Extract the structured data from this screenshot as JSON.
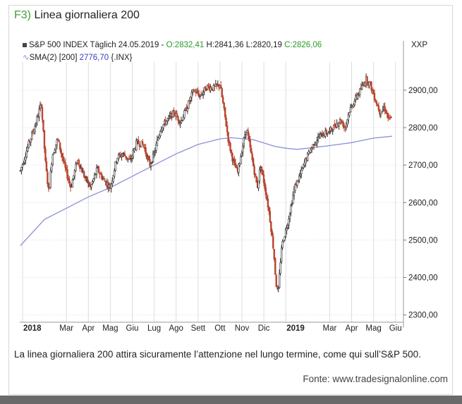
{
  "figure": {
    "label": "F3)",
    "title": "Linea giornaliera 200",
    "caption": "La linea giornaliera 200 attira sicuramente l’attenzione nel lungo termine, come qui sull’S&P 500.",
    "source": "Fonte: www.tradesignalonline.com"
  },
  "legend": {
    "price_line_prefix": "S&P 500 INDEX Täglich  24.05.2019 - ",
    "open": "O:2832,41",
    "high_low": "H:2841,36 L:2820,19",
    "close": "C:2826,06",
    "sma_prefix": "SMA(2) [200] ",
    "sma_value": "2776,70",
    "sma_suffix": " {.INX}"
  },
  "currency_label": "XXP",
  "colors": {
    "bull_candle": "#2b2b2b",
    "bear_candle": "#b8462f",
    "sma_line": "#8a90d8",
    "grid": "#dcdcdc",
    "title_label": "#3aa23a"
  },
  "chart_data": {
    "type": "candlestick",
    "instrument": "S&P 500 INDEX",
    "y_ticks": [
      "2900,00",
      "2800,00",
      "2700,00",
      "2600,00",
      "2500,00",
      "2400,00",
      "2300,00"
    ],
    "y_tick_values": [
      2900,
      2800,
      2700,
      2600,
      2500,
      2400,
      2300
    ],
    "ylim": [
      2290,
      2960
    ],
    "x_ticks": [
      "2018",
      "Mar",
      "Apr",
      "Mag",
      "Giu",
      "Lug",
      "Ago",
      "Sett",
      "Ott",
      "Nov",
      "Dic",
      "2019",
      "Mar",
      "Apr",
      "Mag",
      "Giu"
    ],
    "x_tick_months": [
      0,
      2,
      3,
      4,
      5,
      6,
      7,
      8,
      9,
      10,
      11,
      12,
      14,
      15,
      16,
      17
    ],
    "xlim_months": [
      0,
      17.6
    ],
    "series": [
      {
        "name": "S&P 500 INDEX",
        "key_points": [
          [
            -0.1,
            2685
          ],
          [
            0.3,
            2760
          ],
          [
            0.6,
            2810
          ],
          [
            0.85,
            2865
          ],
          [
            1.05,
            2700
          ],
          [
            1.2,
            2625
          ],
          [
            1.35,
            2725
          ],
          [
            1.6,
            2770
          ],
          [
            1.9,
            2700
          ],
          [
            2.2,
            2640
          ],
          [
            2.5,
            2715
          ],
          [
            2.85,
            2665
          ],
          [
            3.1,
            2640
          ],
          [
            3.4,
            2690
          ],
          [
            3.7,
            2660
          ],
          [
            4.0,
            2640
          ],
          [
            4.3,
            2720
          ],
          [
            4.6,
            2730
          ],
          [
            4.9,
            2710
          ],
          [
            5.2,
            2760
          ],
          [
            5.5,
            2755
          ],
          [
            5.8,
            2700
          ],
          [
            6.0,
            2730
          ],
          [
            6.3,
            2800
          ],
          [
            6.6,
            2820
          ],
          [
            6.9,
            2840
          ],
          [
            7.2,
            2815
          ],
          [
            7.5,
            2855
          ],
          [
            7.8,
            2900
          ],
          [
            8.1,
            2885
          ],
          [
            8.4,
            2910
          ],
          [
            8.7,
            2905
          ],
          [
            9.0,
            2915
          ],
          [
            9.2,
            2840
          ],
          [
            9.4,
            2760
          ],
          [
            9.6,
            2710
          ],
          [
            9.8,
            2680
          ],
          [
            10.0,
            2740
          ],
          [
            10.2,
            2800
          ],
          [
            10.45,
            2720
          ],
          [
            10.7,
            2640
          ],
          [
            10.85,
            2700
          ],
          [
            11.05,
            2640
          ],
          [
            11.25,
            2570
          ],
          [
            11.45,
            2470
          ],
          [
            11.55,
            2385
          ],
          [
            11.65,
            2355
          ],
          [
            11.8,
            2480
          ],
          [
            12.1,
            2550
          ],
          [
            12.4,
            2640
          ],
          [
            12.7,
            2680
          ],
          [
            12.95,
            2720
          ],
          [
            13.3,
            2760
          ],
          [
            13.6,
            2780
          ],
          [
            14.0,
            2790
          ],
          [
            14.3,
            2810
          ],
          [
            14.5,
            2820
          ],
          [
            14.7,
            2800
          ],
          [
            14.9,
            2845
          ],
          [
            15.2,
            2880
          ],
          [
            15.4,
            2900
          ],
          [
            15.65,
            2930
          ],
          [
            15.85,
            2915
          ],
          [
            16.05,
            2880
          ],
          [
            16.3,
            2840
          ],
          [
            16.5,
            2855
          ],
          [
            16.7,
            2820
          ],
          [
            16.85,
            2826
          ]
        ]
      },
      {
        "name": "SMA(2) [200]",
        "points": [
          [
            -0.1,
            2485
          ],
          [
            1.0,
            2555
          ],
          [
            2.0,
            2585
          ],
          [
            3.0,
            2615
          ],
          [
            4.0,
            2640
          ],
          [
            5.0,
            2670
          ],
          [
            6.0,
            2700
          ],
          [
            7.0,
            2730
          ],
          [
            8.0,
            2755
          ],
          [
            9.0,
            2770
          ],
          [
            9.5,
            2773
          ],
          [
            10.5,
            2768
          ],
          [
            11.5,
            2750
          ],
          [
            12.0,
            2745
          ],
          [
            12.5,
            2742
          ],
          [
            13.0,
            2745
          ],
          [
            14.0,
            2752
          ],
          [
            15.0,
            2760
          ],
          [
            16.0,
            2772
          ],
          [
            16.85,
            2777
          ]
        ]
      }
    ],
    "last": {
      "date": "24.05.2019",
      "open": 2832.41,
      "high": 2841.36,
      "low": 2820.19,
      "close": 2826.06
    },
    "sma_last": 2776.7,
    "grid": true
  }
}
